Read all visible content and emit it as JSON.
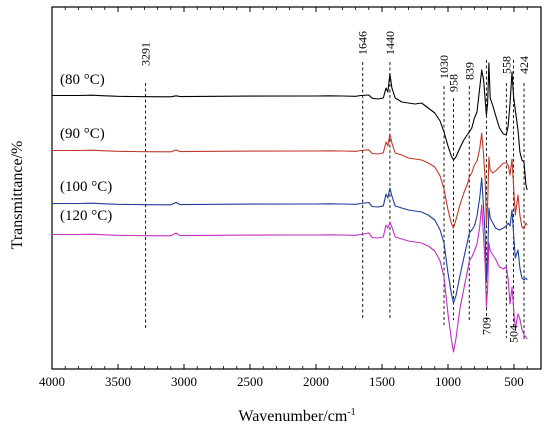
{
  "chart_data": {
    "type": "line",
    "xlabel": "Wavenumber/cm",
    "xlabel_superscript": "-1",
    "ylabel": "Transmittance/%",
    "xlim": [
      4000,
      400
    ],
    "x_reversed": true,
    "x_ticks": [
      4000,
      3500,
      3000,
      2500,
      2000,
      1500,
      1000,
      500
    ],
    "x_tick_labels": [
      "4000",
      "3500",
      "3000",
      "2500",
      "2000",
      "1500",
      "1000",
      "500"
    ],
    "y_ticks_shown": false,
    "grid": false,
    "legend": "none",
    "series_labels_inline": true,
    "series": [
      {
        "name": "(80 °C)",
        "color": "#000000",
        "offset": 0,
        "points": [
          [
            4000,
            95.5
          ],
          [
            3800,
            95.5
          ],
          [
            3700,
            95.2
          ],
          [
            3600,
            95.8
          ],
          [
            3500,
            96.3
          ],
          [
            3400,
            96.5
          ],
          [
            3300,
            96.7
          ],
          [
            3100,
            96.8
          ],
          [
            3060,
            95.8
          ],
          [
            3030,
            96.6
          ],
          [
            2900,
            96.4
          ],
          [
            2500,
            96.1
          ],
          [
            2000,
            96.0
          ],
          [
            1900,
            95.8
          ],
          [
            1800,
            96.0
          ],
          [
            1700,
            96.3
          ],
          [
            1660,
            95.5
          ],
          [
            1600,
            95.0
          ],
          [
            1575,
            98.2
          ],
          [
            1530,
            99.0
          ],
          [
            1490,
            98.0
          ],
          [
            1470,
            88.0
          ],
          [
            1455,
            92.0
          ],
          [
            1440,
            74.0
          ],
          [
            1425,
            88.0
          ],
          [
            1400,
            98.0
          ],
          [
            1350,
            102.0
          ],
          [
            1300,
            103.0
          ],
          [
            1250,
            104.0
          ],
          [
            1200,
            103.0
          ],
          [
            1150,
            108.0
          ],
          [
            1100,
            113.0
          ],
          [
            1060,
            121.0
          ],
          [
            1030,
            132.0
          ],
          [
            1000,
            146.0
          ],
          [
            975,
            156.0
          ],
          [
            958,
            160.0
          ],
          [
            940,
            157.0
          ],
          [
            910,
            148.0
          ],
          [
            880,
            140.0
          ],
          [
            850,
            134.0
          ],
          [
            839,
            132.0
          ],
          [
            820,
            128.0
          ],
          [
            800,
            118.0
          ],
          [
            780,
            112.0
          ],
          [
            760,
            88.0
          ],
          [
            745,
            70.0
          ],
          [
            730,
            80.0
          ],
          [
            718,
            100.0
          ],
          [
            709,
            115.0
          ],
          [
            700,
            104.0
          ],
          [
            690,
            63.0
          ],
          [
            680,
            98.0
          ],
          [
            660,
            106.0
          ],
          [
            640,
            115.0
          ],
          [
            610,
            128.0
          ],
          [
            580,
            134.0
          ],
          [
            558,
            135.0
          ],
          [
            545,
            126.0
          ],
          [
            530,
            104.0
          ],
          [
            515,
            72.0
          ],
          [
            504,
            96.0
          ],
          [
            490,
            110.0
          ],
          [
            470,
            130.0
          ],
          [
            455,
            152.0
          ],
          [
            440,
            160.0
          ],
          [
            424,
            162.0
          ],
          [
            410,
            185.0
          ],
          [
            400,
            190.0
          ]
        ]
      },
      {
        "name": "(90 °C)",
        "color": "#c0392b",
        "offset": 55,
        "points": [
          [
            4000,
            95.5
          ],
          [
            3800,
            95.5
          ],
          [
            3700,
            95.2
          ],
          [
            3600,
            95.8
          ],
          [
            3500,
            96.3
          ],
          [
            3400,
            96.5
          ],
          [
            3300,
            96.7
          ],
          [
            3100,
            96.8
          ],
          [
            3060,
            95.0
          ],
          [
            3030,
            96.6
          ],
          [
            2900,
            96.4
          ],
          [
            2500,
            96.1
          ],
          [
            2000,
            96.0
          ],
          [
            1900,
            95.8
          ],
          [
            1800,
            96.0
          ],
          [
            1700,
            96.3
          ],
          [
            1660,
            95.5
          ],
          [
            1600,
            94.8
          ],
          [
            1575,
            98.5
          ],
          [
            1530,
            99.0
          ],
          [
            1490,
            98.0
          ],
          [
            1470,
            87.0
          ],
          [
            1455,
            91.0
          ],
          [
            1440,
            79.0
          ],
          [
            1425,
            88.0
          ],
          [
            1400,
            98.0
          ],
          [
            1350,
            100.0
          ],
          [
            1300,
            103.0
          ],
          [
            1250,
            104.0
          ],
          [
            1200,
            105.0
          ],
          [
            1150,
            108.0
          ],
          [
            1100,
            112.0
          ],
          [
            1060,
            121.0
          ],
          [
            1030,
            134.0
          ],
          [
            1000,
            155.0
          ],
          [
            975,
            168.0
          ],
          [
            958,
            173.0
          ],
          [
            940,
            165.0
          ],
          [
            910,
            150.0
          ],
          [
            880,
            138.0
          ],
          [
            850,
            128.0
          ],
          [
            839,
            122.0
          ],
          [
            820,
            118.0
          ],
          [
            800,
            110.0
          ],
          [
            780,
            106.0
          ],
          [
            760,
            94.0
          ],
          [
            745,
            78.0
          ],
          [
            730,
            100.0
          ],
          [
            718,
            125.0
          ],
          [
            709,
            170.0
          ],
          [
            700,
            150.0
          ],
          [
            690,
            102.0
          ],
          [
            680,
            115.0
          ],
          [
            660,
            118.0
          ],
          [
            640,
            116.0
          ],
          [
            610,
            112.0
          ],
          [
            580,
            108.0
          ],
          [
            558,
            108.0
          ],
          [
            545,
            110.0
          ],
          [
            530,
            120.0
          ],
          [
            515,
            104.0
          ],
          [
            504,
            130.0
          ],
          [
            490,
            160.0
          ],
          [
            470,
            140.0
          ],
          [
            455,
            160.0
          ],
          [
            440,
            172.0
          ],
          [
            424,
            174.0
          ],
          [
            410,
            168.0
          ],
          [
            400,
            170.0
          ]
        ]
      },
      {
        "name": "(100 °C)",
        "color": "#1f3c99",
        "offset": 108,
        "points": [
          [
            4000,
            95.5
          ],
          [
            3800,
            95.5
          ],
          [
            3700,
            95.2
          ],
          [
            3600,
            95.8
          ],
          [
            3500,
            96.3
          ],
          [
            3400,
            96.5
          ],
          [
            3300,
            96.7
          ],
          [
            3100,
            96.8
          ],
          [
            3060,
            94.5
          ],
          [
            3030,
            96.6
          ],
          [
            2900,
            96.4
          ],
          [
            2500,
            96.1
          ],
          [
            2000,
            96.0
          ],
          [
            1900,
            95.8
          ],
          [
            1800,
            96.0
          ],
          [
            1700,
            96.3
          ],
          [
            1660,
            95.5
          ],
          [
            1600,
            94.5
          ],
          [
            1575,
            98.5
          ],
          [
            1530,
            99.0
          ],
          [
            1490,
            98.0
          ],
          [
            1470,
            86.0
          ],
          [
            1455,
            90.0
          ],
          [
            1440,
            80.0
          ],
          [
            1425,
            88.0
          ],
          [
            1400,
            98.0
          ],
          [
            1350,
            100.0
          ],
          [
            1300,
            102.0
          ],
          [
            1250,
            103.0
          ],
          [
            1200,
            104.0
          ],
          [
            1150,
            107.0
          ],
          [
            1100,
            112.0
          ],
          [
            1060,
            122.0
          ],
          [
            1030,
            135.0
          ],
          [
            1000,
            165.0
          ],
          [
            975,
            185.0
          ],
          [
            958,
            195.0
          ],
          [
            940,
            188.0
          ],
          [
            910,
            168.0
          ],
          [
            880,
            150.0
          ],
          [
            850,
            132.0
          ],
          [
            839,
            125.0
          ],
          [
            820,
            122.0
          ],
          [
            800,
            118.0
          ],
          [
            780,
            108.0
          ],
          [
            760,
            90.0
          ],
          [
            745,
            70.0
          ],
          [
            730,
            100.0
          ],
          [
            718,
            128.0
          ],
          [
            709,
            172.0
          ],
          [
            700,
            152.0
          ],
          [
            690,
            100.0
          ],
          [
            680,
            110.0
          ],
          [
            660,
            115.0
          ],
          [
            640,
            120.0
          ],
          [
            610,
            122.0
          ],
          [
            580,
            120.0
          ],
          [
            558,
            118.0
          ],
          [
            545,
            115.0
          ],
          [
            530,
            118.0
          ],
          [
            515,
            102.0
          ],
          [
            504,
            125.0
          ],
          [
            490,
            150.0
          ],
          [
            470,
            142.0
          ],
          [
            455,
            160.0
          ],
          [
            440,
            170.0
          ],
          [
            424,
            172.0
          ],
          [
            410,
            170.0
          ],
          [
            400,
            172.0
          ]
        ]
      },
      {
        "name": "(120 °C)",
        "color": "#c22fc2",
        "offset": 139,
        "points": [
          [
            4000,
            95.5
          ],
          [
            3800,
            95.5
          ],
          [
            3700,
            95.2
          ],
          [
            3600,
            95.8
          ],
          [
            3500,
            96.3
          ],
          [
            3400,
            96.5
          ],
          [
            3300,
            96.7
          ],
          [
            3100,
            96.8
          ],
          [
            3060,
            94.0
          ],
          [
            3030,
            96.6
          ],
          [
            2900,
            96.4
          ],
          [
            2500,
            96.1
          ],
          [
            2000,
            96.0
          ],
          [
            1900,
            95.8
          ],
          [
            1800,
            96.0
          ],
          [
            1700,
            96.3
          ],
          [
            1660,
            95.5
          ],
          [
            1600,
            94.0
          ],
          [
            1575,
            98.5
          ],
          [
            1530,
            99.0
          ],
          [
            1490,
            98.0
          ],
          [
            1470,
            86.0
          ],
          [
            1455,
            89.0
          ],
          [
            1440,
            83.0
          ],
          [
            1425,
            88.0
          ],
          [
            1400,
            98.0
          ],
          [
            1350,
            100.0
          ],
          [
            1300,
            102.0
          ],
          [
            1250,
            103.0
          ],
          [
            1200,
            104.0
          ],
          [
            1150,
            107.0
          ],
          [
            1100,
            112.0
          ],
          [
            1060,
            122.0
          ],
          [
            1030,
            138.0
          ],
          [
            1000,
            175.0
          ],
          [
            975,
            200.0
          ],
          [
            958,
            213.0
          ],
          [
            940,
            200.0
          ],
          [
            910,
            170.0
          ],
          [
            880,
            150.0
          ],
          [
            850,
            130.0
          ],
          [
            839,
            122.0
          ],
          [
            820,
            118.0
          ],
          [
            800,
            112.0
          ],
          [
            780,
            105.0
          ],
          [
            760,
            88.0
          ],
          [
            745,
            66.0
          ],
          [
            730,
            98.0
          ],
          [
            718,
            126.0
          ],
          [
            709,
            168.0
          ],
          [
            700,
            150.0
          ],
          [
            690,
            104.0
          ],
          [
            680,
            112.0
          ],
          [
            660,
            116.0
          ],
          [
            640,
            120.0
          ],
          [
            610,
            128.0
          ],
          [
            580,
            130.0
          ],
          [
            558,
            128.0
          ],
          [
            545,
            140.0
          ],
          [
            530,
            165.0
          ],
          [
            515,
            148.0
          ],
          [
            504,
            168.0
          ],
          [
            490,
            190.0
          ],
          [
            470,
            175.0
          ],
          [
            455,
            180.0
          ],
          [
            440,
            190.0
          ],
          [
            424,
            196.0
          ],
          [
            410,
            198.0
          ],
          [
            400,
            200.0
          ]
        ]
      }
    ],
    "annotations": [
      {
        "text": "3291",
        "x": 3291,
        "position": "top"
      },
      {
        "text": "1646",
        "x": 1646,
        "position": "top"
      },
      {
        "text": "1440",
        "x": 1440,
        "position": "top"
      },
      {
        "text": "1030",
        "x": 1030,
        "position": "top"
      },
      {
        "text": "958",
        "x": 958,
        "position": "top"
      },
      {
        "text": "839",
        "x": 839,
        "position": "top"
      },
      {
        "text": "558",
        "x": 558,
        "position": "top"
      },
      {
        "text": "424",
        "x": 424,
        "position": "top"
      },
      {
        "text": "709",
        "x": 709,
        "position": "bottom"
      },
      {
        "text": "504",
        "x": 504,
        "position": "bottom"
      }
    ]
  }
}
